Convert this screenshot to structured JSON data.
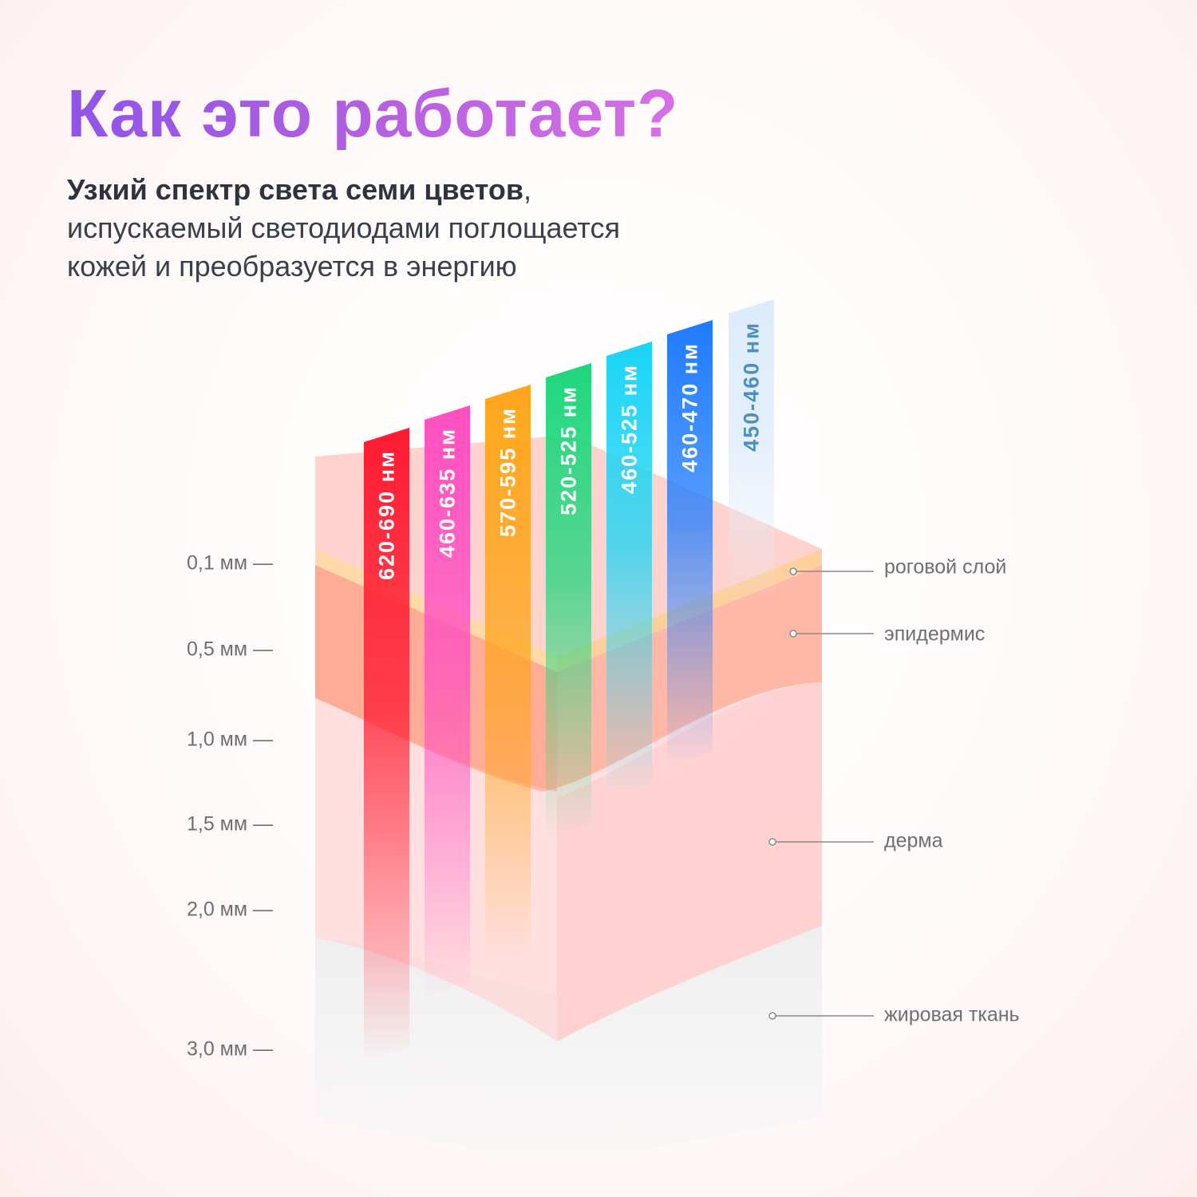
{
  "header": {
    "title": "Как это работает?",
    "subtitle_bold": "Узкий спектр света семи цветов",
    "subtitle_comma": ",",
    "subtitle_line2": "испускаемый светодиодами поглощается",
    "subtitle_line3": "кожей и преобразуется в энергию"
  },
  "depth_scale": [
    {
      "label": "0,1 мм —"
    },
    {
      "label": "0,5 мм —"
    },
    {
      "label": "1,0 мм —"
    },
    {
      "label": "1,5 мм —"
    },
    {
      "label": "2,0 мм —"
    },
    {
      "label": "3,0 мм —"
    }
  ],
  "light_beams": [
    {
      "label": "620-690 нм",
      "color": "#ff1a30",
      "text_color": "#ffffff"
    },
    {
      "label": "460-635 нм",
      "color": "#ff4fc0",
      "text_color": "#ffffff"
    },
    {
      "label": "570-595 нм",
      "color": "#ffa51a",
      "text_color": "#ffffff"
    },
    {
      "label": "520-525 нм",
      "color": "#1fd67c",
      "text_color": "#ffffff"
    },
    {
      "label": "460-525 нм",
      "color": "#1ad4f5",
      "text_color": "#ffffff"
    },
    {
      "label": "460-470 нм",
      "color": "#1f7bff",
      "text_color": "#ffffff"
    },
    {
      "label": "450-460 нм",
      "color": "#dcebfb",
      "text_color": "#4f8fbf"
    }
  ],
  "skin_layers": [
    {
      "label": "роговой слой",
      "color": "#ffd3a8"
    },
    {
      "label": "эпидермис",
      "color": "#ffab98"
    },
    {
      "label": "дерма",
      "color": "#ffd2d2"
    },
    {
      "label": "жировая ткань",
      "color": "#ececec"
    }
  ]
}
